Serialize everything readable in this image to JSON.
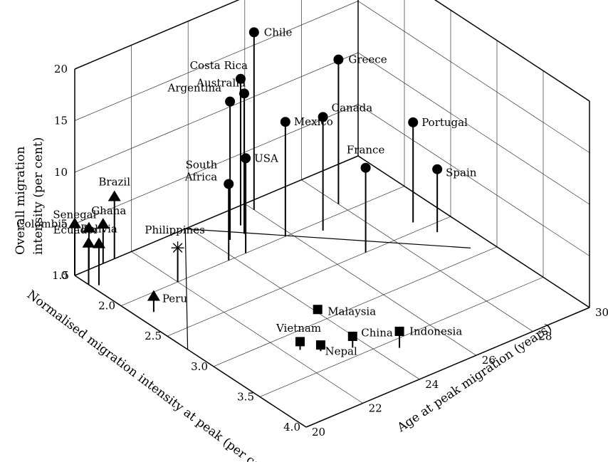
{
  "chart_data": {
    "type": "scatter",
    "projection": "3d",
    "axes": {
      "x": {
        "label": "Age at peak migration (years)",
        "range": [
          20,
          30
        ],
        "ticks": [
          "20",
          "22",
          "24",
          "26",
          "28",
          "30"
        ]
      },
      "y": {
        "label": "Normalised migration intensity at peak (per cent)",
        "range": [
          1.5,
          4.0
        ],
        "ticks": [
          "1.5",
          "2.0",
          "2.5",
          "3.0",
          "3.5",
          "4.0"
        ]
      },
      "z": {
        "label": "Overall migration intensity (per cent)",
        "range": [
          0,
          20
        ],
        "ticks": [
          "0",
          "5",
          "10",
          "15",
          "20"
        ]
      }
    },
    "grid": true,
    "points": [
      {
        "label": "Chile",
        "marker": "circle",
        "x": 26.0,
        "y": 1.6,
        "z": 17.2
      },
      {
        "label": "Costa Rica",
        "marker": "circle",
        "x": 25.2,
        "y": 1.7,
        "z": 14.2
      },
      {
        "label": "Australia",
        "marker": "circle",
        "x": 25.0,
        "y": 1.8,
        "z": 13.6
      },
      {
        "label": "Argentina",
        "marker": "circle",
        "x": 24.5,
        "y": 1.8,
        "z": 13.4
      },
      {
        "label": "Greece",
        "marker": "circle",
        "x": 28.0,
        "y": 1.9,
        "z": 14.0
      },
      {
        "label": "Mexico",
        "marker": "circle",
        "x": 25.8,
        "y": 2.0,
        "z": 11.1
      },
      {
        "label": "Canada",
        "marker": "circle",
        "x": 26.8,
        "y": 2.1,
        "z": 11.0
      },
      {
        "label": "USA",
        "marker": "circle",
        "x": 24.4,
        "y": 2.0,
        "z": 9.2
      },
      {
        "label": "South Africa",
        "marker": "circle",
        "x": 23.8,
        "y": 2.0,
        "z": 7.4
      },
      {
        "label": "Portugal",
        "marker": "circle",
        "x": 29.0,
        "y": 2.4,
        "z": 9.7
      },
      {
        "label": "France",
        "marker": "circle",
        "x": 27.0,
        "y": 2.5,
        "z": 8.2
      },
      {
        "label": "Spain",
        "marker": "circle",
        "x": 29.2,
        "y": 2.6,
        "z": 6.1
      },
      {
        "label": "Philippines",
        "marker": "star",
        "x": 22.0,
        "y": 2.0,
        "z": 3.3
      },
      {
        "label": "Brazil",
        "marker": "triangle",
        "x": 21.4,
        "y": 1.5,
        "z": 6.0
      },
      {
        "label": "Ghana",
        "marker": "triangle",
        "x": 21.0,
        "y": 1.5,
        "z": 3.8
      },
      {
        "label": "Senegal",
        "marker": "triangle",
        "x": 20.5,
        "y": 1.5,
        "z": 4.0
      },
      {
        "label": "Bolivia",
        "marker": "triangle",
        "x": 20.2,
        "y": 1.7,
        "z": 4.0
      },
      {
        "label": "Ecuador",
        "marker": "triangle",
        "x": 20.0,
        "y": 1.65,
        "z": 4.0
      },
      {
        "label": "Colombia",
        "marker": "triangle",
        "x": 20.0,
        "y": 1.5,
        "z": 5.0
      },
      {
        "label": "Peru",
        "marker": "triangle",
        "x": 20.5,
        "y": 2.2,
        "z": 1.5
      },
      {
        "label": "Malaysia",
        "marker": "square",
        "x": 24.0,
        "y": 2.9,
        "z": 0.3
      },
      {
        "label": "Vietnam",
        "marker": "square",
        "x": 22.4,
        "y": 3.2,
        "z": 0.8
      },
      {
        "label": "Nepal",
        "marker": "square",
        "x": 22.8,
        "y": 3.3,
        "z": 0.6
      },
      {
        "label": "China",
        "marker": "square",
        "x": 23.6,
        "y": 3.4,
        "z": 1.1
      },
      {
        "label": "Indonesia",
        "marker": "square",
        "x": 24.6,
        "y": 3.6,
        "z": 1.6
      }
    ]
  }
}
